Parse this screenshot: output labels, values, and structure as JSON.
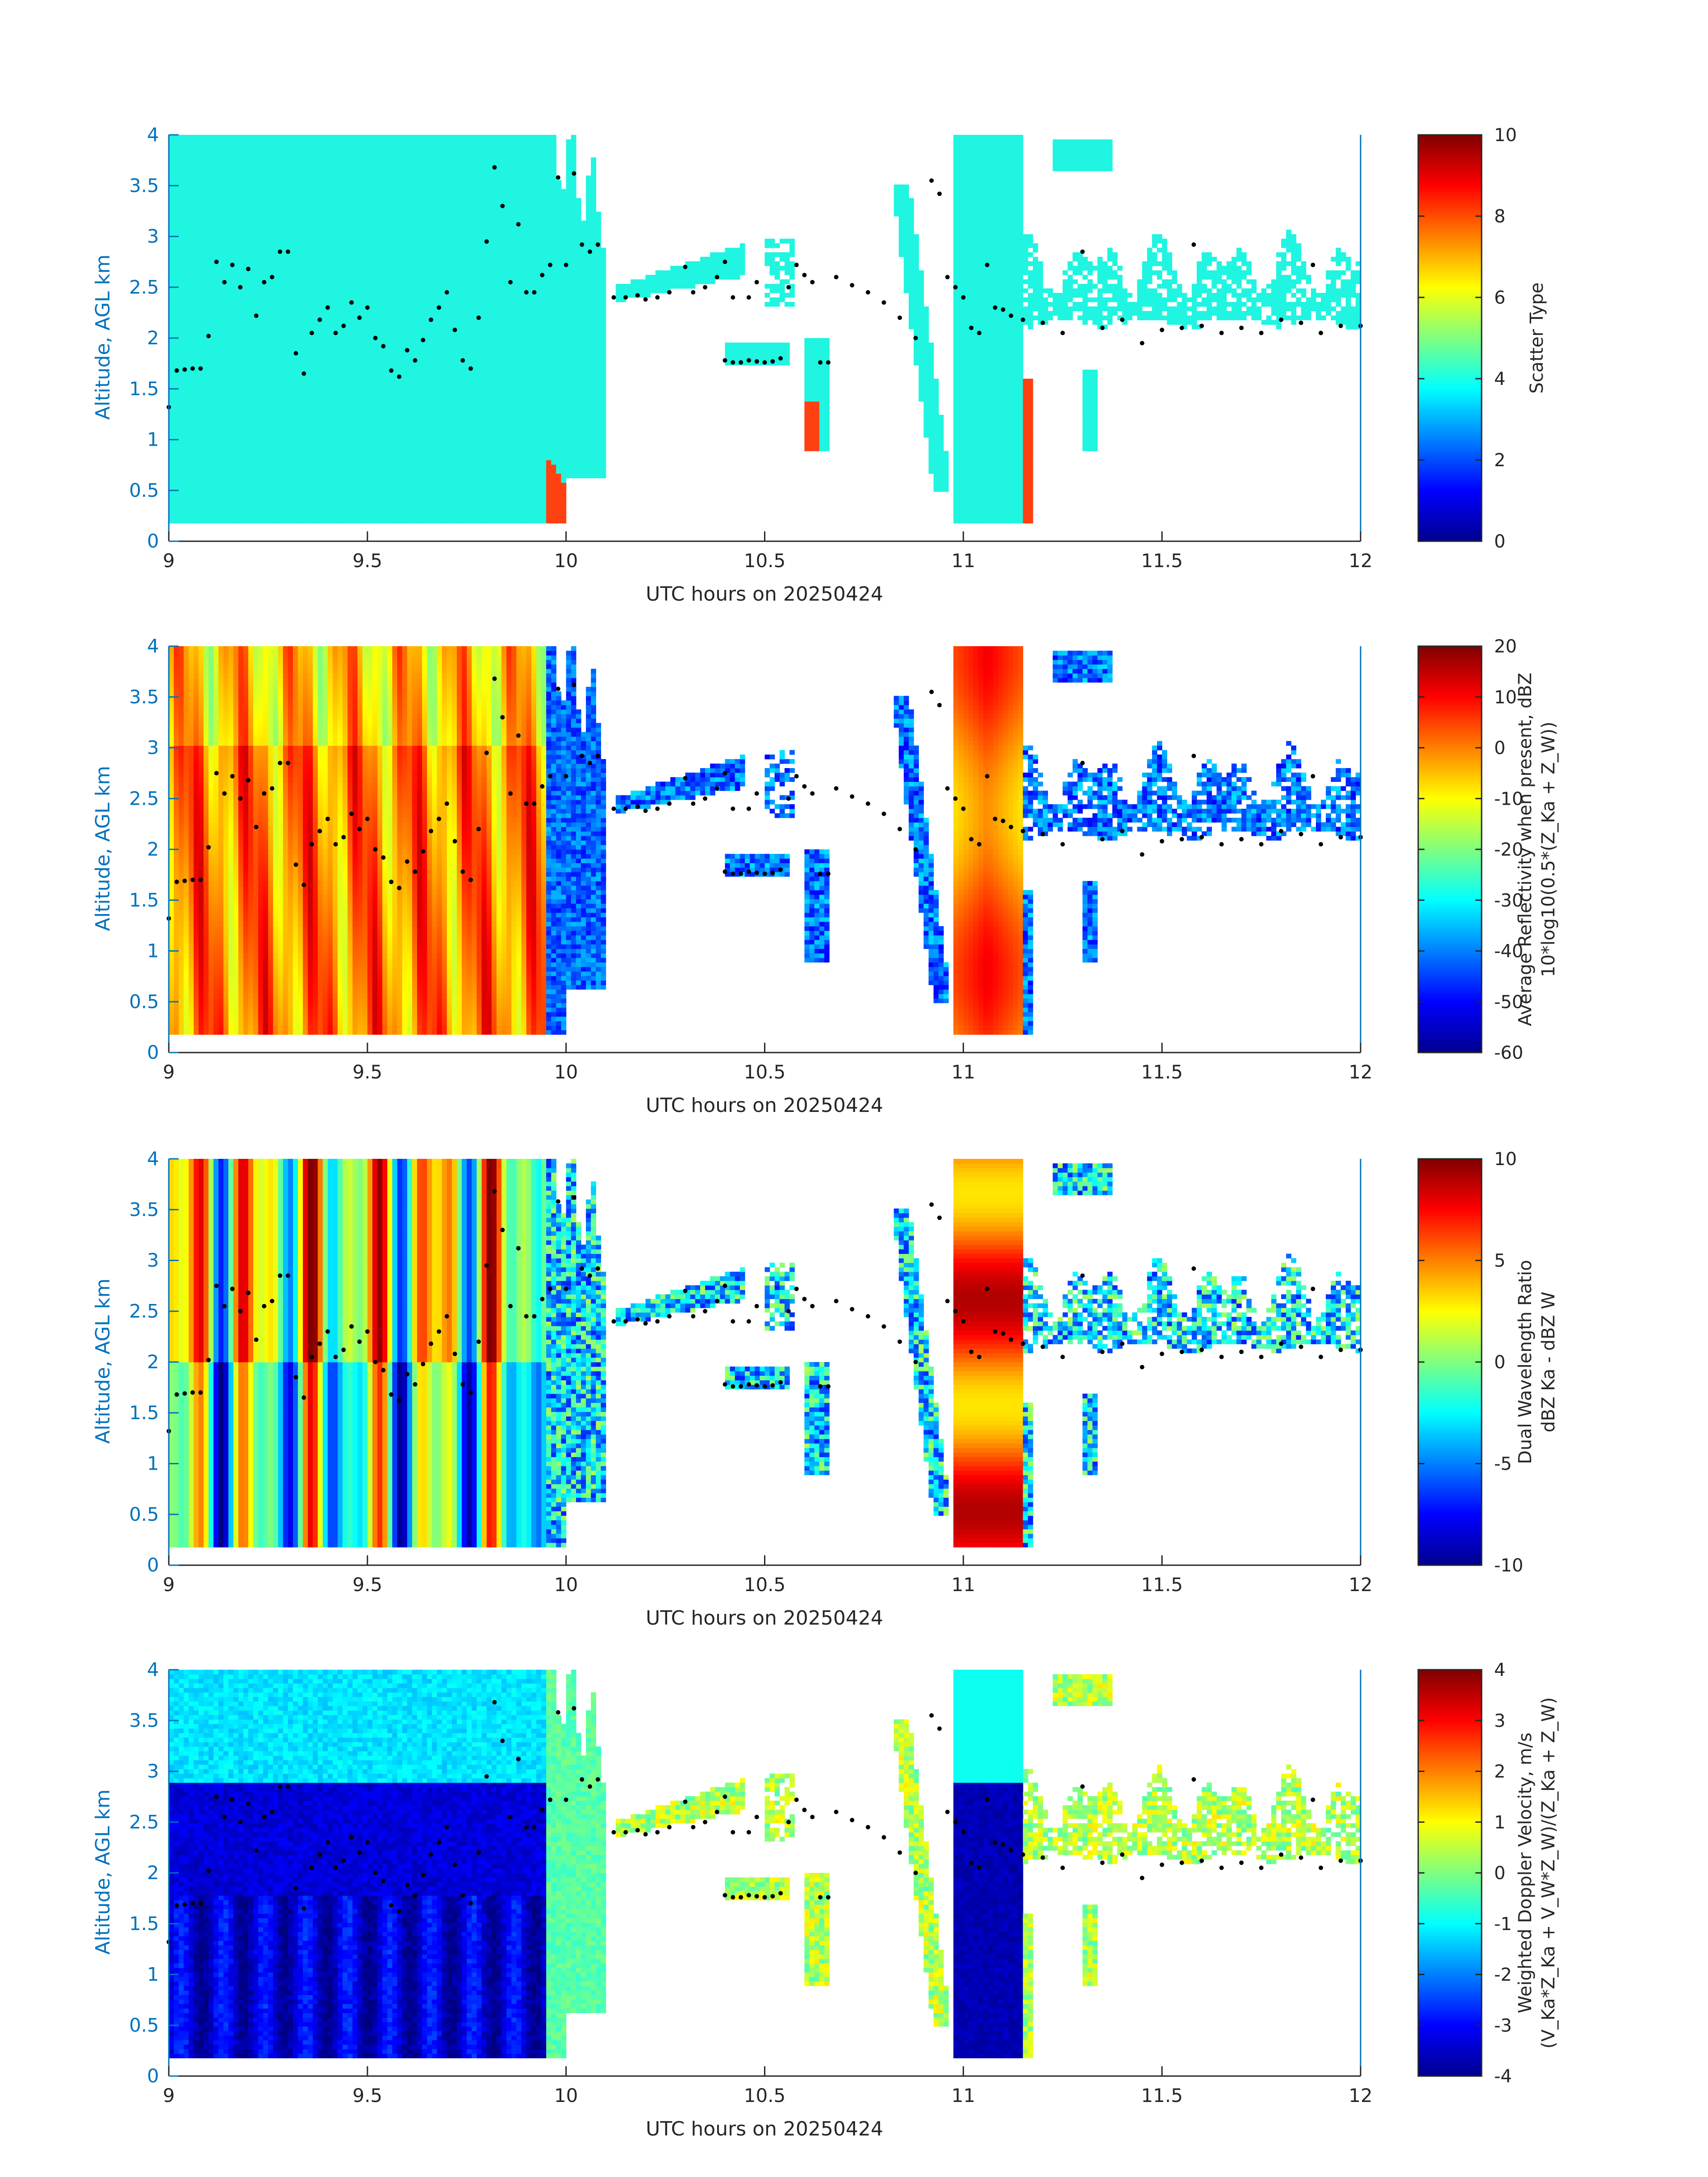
{
  "figure": {
    "background": "#ffffff",
    "axis_color": "#0072BD",
    "scatter_type_fill": "#1ff5e0",
    "precip_fill": "#ff4010",
    "dot_color": "#000000"
  },
  "chart_data": [
    {
      "type": "heatmap",
      "variable": "scatter_type",
      "xlabel": "UTC hours on 20250424",
      "ylabel": "Altitude, AGL km",
      "xlim": [
        9,
        12
      ],
      "ylim": [
        0,
        4
      ],
      "xticks": [
        "9",
        "9.5",
        "10",
        "10.5",
        "11",
        "11.5",
        "12"
      ],
      "yticks": [
        "0",
        "0.5",
        "1",
        "1.5",
        "2",
        "2.5",
        "3",
        "3.5",
        "4"
      ],
      "colorbar": {
        "label_lines": [
          "Scatter Type"
        ],
        "range": [
          0,
          10
        ],
        "ticks": [
          "0",
          "2",
          "4",
          "6",
          "8",
          "10"
        ]
      }
    },
    {
      "type": "heatmap",
      "variable": "reflectivity",
      "xlabel": "UTC hours on 20250424",
      "ylabel": "Altitude, AGL km",
      "xlim": [
        9,
        12
      ],
      "ylim": [
        0,
        4
      ],
      "xticks": [
        "9",
        "9.5",
        "10",
        "10.5",
        "11",
        "11.5",
        "12"
      ],
      "yticks": [
        "0",
        "0.5",
        "1",
        "1.5",
        "2",
        "2.5",
        "3",
        "3.5",
        "4"
      ],
      "colorbar": {
        "label_lines": [
          "Average Reflectivity when present, dBZ",
          "10*log10(0.5*(Z_Ka + Z_W))"
        ],
        "range": [
          -60,
          20
        ],
        "ticks": [
          "-60",
          "-50",
          "-40",
          "-30",
          "-20",
          "-10",
          "0",
          "10",
          "20"
        ]
      }
    },
    {
      "type": "heatmap",
      "variable": "dwr",
      "xlabel": "UTC hours on 20250424",
      "ylabel": "Altitude, AGL km",
      "xlim": [
        9,
        12
      ],
      "ylim": [
        0,
        4
      ],
      "xticks": [
        "9",
        "9.5",
        "10",
        "10.5",
        "11",
        "11.5",
        "12"
      ],
      "yticks": [
        "0",
        "0.5",
        "1",
        "1.5",
        "2",
        "2.5",
        "3",
        "3.5",
        "4"
      ],
      "colorbar": {
        "label_lines": [
          "Dual Wavelength Ratio",
          "dBZ Ka - dBZ W"
        ],
        "range": [
          -10,
          10
        ],
        "ticks": [
          "-10",
          "-5",
          "0",
          "5",
          "10"
        ]
      }
    },
    {
      "type": "heatmap",
      "variable": "doppler",
      "xlabel": "UTC hours on 20250424",
      "ylabel": "Altitude, AGL km",
      "xlim": [
        9,
        12
      ],
      "ylim": [
        0,
        4
      ],
      "xticks": [
        "9",
        "9.5",
        "10",
        "10.5",
        "11",
        "11.5",
        "12"
      ],
      "yticks": [
        "0",
        "0.5",
        "1",
        "1.5",
        "2",
        "2.5",
        "3",
        "3.5",
        "4"
      ],
      "colorbar": {
        "label_lines": [
          "Weighted Doppler Velocity, m/s",
          "(V_Ka*Z_Ka + V_W*Z_W)/(Z_Ka + Z_W)"
        ],
        "range": [
          -4,
          4
        ],
        "ticks": [
          "-4",
          "-3",
          "-2",
          "-1",
          "0",
          "1",
          "2",
          "3",
          "4"
        ]
      }
    }
  ],
  "cloud_base_dots": [
    [
      9.0,
      1.32
    ],
    [
      9.02,
      1.68
    ],
    [
      9.04,
      1.69
    ],
    [
      9.06,
      1.7
    ],
    [
      9.08,
      1.7
    ],
    [
      9.1,
      2.02
    ],
    [
      9.12,
      2.75
    ],
    [
      9.14,
      2.55
    ],
    [
      9.16,
      2.72
    ],
    [
      9.18,
      2.5
    ],
    [
      9.2,
      2.68
    ],
    [
      9.22,
      2.22
    ],
    [
      9.24,
      2.55
    ],
    [
      9.26,
      2.6
    ],
    [
      9.28,
      2.85
    ],
    [
      9.3,
      2.85
    ],
    [
      9.32,
      1.85
    ],
    [
      9.34,
      1.65
    ],
    [
      9.36,
      2.05
    ],
    [
      9.38,
      2.18
    ],
    [
      9.4,
      2.3
    ],
    [
      9.42,
      2.05
    ],
    [
      9.44,
      2.12
    ],
    [
      9.46,
      2.35
    ],
    [
      9.48,
      2.2
    ],
    [
      9.5,
      2.3
    ],
    [
      9.52,
      2.0
    ],
    [
      9.54,
      1.92
    ],
    [
      9.56,
      1.68
    ],
    [
      9.58,
      1.62
    ],
    [
      9.6,
      1.88
    ],
    [
      9.62,
      1.78
    ],
    [
      9.64,
      1.98
    ],
    [
      9.66,
      2.18
    ],
    [
      9.68,
      2.3
    ],
    [
      9.7,
      2.45
    ],
    [
      9.72,
      2.08
    ],
    [
      9.74,
      1.78
    ],
    [
      9.76,
      1.7
    ],
    [
      9.78,
      2.2
    ],
    [
      9.8,
      2.95
    ],
    [
      9.82,
      3.68
    ],
    [
      9.84,
      3.3
    ],
    [
      9.86,
      2.55
    ],
    [
      9.88,
      3.12
    ],
    [
      9.9,
      2.45
    ],
    [
      9.92,
      2.45
    ],
    [
      9.94,
      2.62
    ],
    [
      9.96,
      2.72
    ],
    [
      9.98,
      3.58
    ],
    [
      10.0,
      2.72
    ],
    [
      10.02,
      3.62
    ],
    [
      10.04,
      2.92
    ],
    [
      10.06,
      2.85
    ],
    [
      10.08,
      2.92
    ],
    [
      10.12,
      2.4
    ],
    [
      10.15,
      2.4
    ],
    [
      10.18,
      2.42
    ],
    [
      10.2,
      2.38
    ],
    [
      10.23,
      2.4
    ],
    [
      10.26,
      2.45
    ],
    [
      10.3,
      2.7
    ],
    [
      10.32,
      2.45
    ],
    [
      10.35,
      2.5
    ],
    [
      10.38,
      2.6
    ],
    [
      10.4,
      2.75
    ],
    [
      10.42,
      2.4
    ],
    [
      10.46,
      2.4
    ],
    [
      10.48,
      2.55
    ],
    [
      10.4,
      1.78
    ],
    [
      10.42,
      1.76
    ],
    [
      10.44,
      1.76
    ],
    [
      10.46,
      1.78
    ],
    [
      10.48,
      1.77
    ],
    [
      10.5,
      1.76
    ],
    [
      10.52,
      1.77
    ],
    [
      10.54,
      1.8
    ],
    [
      10.56,
      2.5
    ],
    [
      10.58,
      2.72
    ],
    [
      10.6,
      2.62
    ],
    [
      10.62,
      2.55
    ],
    [
      10.64,
      1.76
    ],
    [
      10.66,
      1.76
    ],
    [
      10.68,
      2.6
    ],
    [
      10.72,
      2.52
    ],
    [
      10.76,
      2.45
    ],
    [
      10.8,
      2.35
    ],
    [
      10.84,
      2.2
    ],
    [
      10.88,
      2.0
    ],
    [
      10.92,
      3.55
    ],
    [
      10.94,
      3.42
    ],
    [
      10.96,
      2.6
    ],
    [
      10.98,
      2.5
    ],
    [
      11.0,
      2.4
    ],
    [
      11.02,
      2.1
    ],
    [
      11.04,
      2.05
    ],
    [
      11.06,
      2.72
    ],
    [
      11.08,
      2.3
    ],
    [
      11.1,
      2.28
    ],
    [
      11.12,
      2.22
    ],
    [
      11.15,
      2.18
    ],
    [
      11.2,
      2.15
    ],
    [
      11.25,
      2.05
    ],
    [
      11.3,
      2.85
    ],
    [
      11.35,
      2.1
    ],
    [
      11.4,
      2.18
    ],
    [
      11.45,
      1.95
    ],
    [
      11.5,
      2.08
    ],
    [
      11.55,
      2.1
    ],
    [
      11.6,
      2.12
    ],
    [
      11.65,
      2.05
    ],
    [
      11.7,
      2.1
    ],
    [
      11.75,
      2.05
    ],
    [
      11.8,
      2.18
    ],
    [
      11.85,
      2.15
    ],
    [
      11.9,
      2.05
    ],
    [
      11.95,
      2.12
    ],
    [
      12.0,
      2.12
    ],
    [
      11.58,
      2.92
    ],
    [
      11.88,
      2.72
    ]
  ]
}
